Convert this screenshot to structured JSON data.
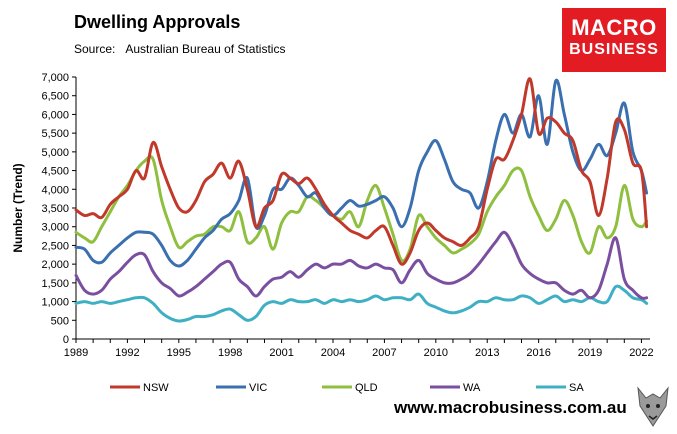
{
  "header": {
    "title": "Dwelling Approvals",
    "source_label": "Source:",
    "source_value": "Australian Bureau of Statistics"
  },
  "logo": {
    "line1": "MACRO",
    "line2": "BUSINESS",
    "color": "#e31c23"
  },
  "footer": {
    "website": "www.macrobusiness.com.au"
  },
  "chart_data": {
    "type": "line",
    "title": "Dwelling Approvals",
    "ylabel": "Number (Trend)",
    "xlabel": "",
    "xlim": [
      1989,
      2022.5
    ],
    "ylim": [
      0,
      7000
    ],
    "x_ticks": [
      "1989",
      "1992",
      "1995",
      "1998",
      "2001",
      "2004",
      "2007",
      "2010",
      "2013",
      "2016",
      "2019",
      "2022"
    ],
    "y_ticks": [
      "0",
      "500",
      "1,000",
      "1,500",
      "2,000",
      "2,500",
      "3,000",
      "3,500",
      "4,000",
      "4,500",
      "5,000",
      "5,500",
      "6,000",
      "6,500",
      "7,000"
    ],
    "grid": false,
    "legend_position": "bottom",
    "series": [
      {
        "name": "NSW",
        "color": "#c0392b",
        "x": [
          1989,
          1989.5,
          1990,
          1990.5,
          1991,
          1991.5,
          1992,
          1992.5,
          1993,
          1993.5,
          1994,
          1994.5,
          1995,
          1995.5,
          1996,
          1996.5,
          1997,
          1997.5,
          1998,
          1998.5,
          1999,
          1999.5,
          2000,
          2000.5,
          2001,
          2001.5,
          2002,
          2002.5,
          2003,
          2003.5,
          2004,
          2004.5,
          2005,
          2005.5,
          2006,
          2006.5,
          2007,
          2007.5,
          2008,
          2008.5,
          2009,
          2009.5,
          2010,
          2010.5,
          2011,
          2011.5,
          2012,
          2012.5,
          2013,
          2013.5,
          2014,
          2014.5,
          2015,
          2015.5,
          2016,
          2016.5,
          2017,
          2017.5,
          2018,
          2018.5,
          2019,
          2019.5,
          2020,
          2020.5,
          2021,
          2021.5,
          2022,
          2022.3
        ],
        "y": [
          3450,
          3300,
          3350,
          3250,
          3600,
          3800,
          4000,
          4500,
          4300,
          5250,
          4600,
          4000,
          3500,
          3400,
          3700,
          4200,
          4400,
          4700,
          4300,
          4750,
          4000,
          3000,
          3500,
          3700,
          4400,
          4300,
          4150,
          4300,
          4000,
          3600,
          3300,
          3100,
          2900,
          2800,
          2700,
          2900,
          3000,
          2500,
          2000,
          2300,
          2900,
          3100,
          2900,
          2700,
          2600,
          2500,
          2700,
          3000,
          4000,
          4800,
          4800,
          5300,
          6000,
          6950,
          5500,
          5900,
          5800,
          5500,
          5300,
          4500,
          4200,
          3300,
          4300,
          5800,
          5600,
          4700,
          4500,
          3000
        ]
      },
      {
        "name": "VIC",
        "color": "#3a6fb0",
        "x": [
          1989,
          1989.5,
          1990,
          1990.5,
          1991,
          1991.5,
          1992,
          1992.5,
          1993,
          1993.5,
          1994,
          1994.5,
          1995,
          1995.5,
          1996,
          1996.5,
          1997,
          1997.5,
          1998,
          1998.5,
          1999,
          1999.5,
          2000,
          2000.5,
          2001,
          2001.5,
          2002,
          2002.5,
          2003,
          2003.5,
          2004,
          2004.5,
          2005,
          2005.5,
          2006,
          2006.5,
          2007,
          2007.5,
          2008,
          2008.5,
          2009,
          2009.5,
          2010,
          2010.5,
          2011,
          2011.5,
          2012,
          2012.5,
          2013,
          2013.5,
          2014,
          2014.5,
          2015,
          2015.5,
          2016,
          2016.5,
          2017,
          2017.5,
          2018,
          2018.5,
          2019,
          2019.5,
          2020,
          2020.5,
          2021,
          2021.5,
          2022,
          2022.3
        ],
        "y": [
          2450,
          2400,
          2100,
          2050,
          2300,
          2500,
          2700,
          2850,
          2850,
          2800,
          2500,
          2100,
          1950,
          2100,
          2400,
          2700,
          2900,
          3200,
          3350,
          3700,
          4300,
          3000,
          3300,
          4000,
          4000,
          4300,
          4100,
          3800,
          3900,
          3500,
          3300,
          3500,
          3700,
          3550,
          3600,
          3700,
          3800,
          3500,
          3000,
          3500,
          4500,
          5000,
          5300,
          4800,
          4200,
          4000,
          3900,
          3500,
          4200,
          5300,
          6000,
          5500,
          6000,
          5400,
          6500,
          5200,
          6900,
          6000,
          5000,
          4500,
          4800,
          5200,
          4900,
          5500,
          6300,
          5000,
          4500,
          3900
        ]
      },
      {
        "name": "QLD",
        "color": "#8fbf3f",
        "x": [
          1989,
          1989.5,
          1990,
          1990.5,
          1991,
          1991.5,
          1992,
          1992.5,
          1993,
          1993.5,
          1994,
          1994.5,
          1995,
          1995.5,
          1996,
          1996.5,
          1997,
          1997.5,
          1998,
          1998.5,
          1999,
          1999.5,
          2000,
          2000.5,
          2001,
          2001.5,
          2002,
          2002.5,
          2003,
          2003.5,
          2004,
          2004.5,
          2005,
          2005.5,
          2006,
          2006.5,
          2007,
          2007.5,
          2008,
          2008.5,
          2009,
          2009.5,
          2010,
          2010.5,
          2011,
          2011.5,
          2012,
          2012.5,
          2013,
          2013.5,
          2014,
          2014.5,
          2015,
          2015.5,
          2016,
          2016.5,
          2017,
          2017.5,
          2018,
          2018.5,
          2019,
          2019.5,
          2020,
          2020.5,
          2021,
          2021.5,
          2022,
          2022.3
        ],
        "y": [
          2850,
          2700,
          2600,
          3000,
          3400,
          3800,
          4100,
          4500,
          4750,
          4800,
          3700,
          3000,
          2450,
          2600,
          2750,
          2800,
          3000,
          3000,
          2900,
          3400,
          2600,
          2700,
          3000,
          2400,
          3100,
          3400,
          3400,
          3800,
          3700,
          3500,
          3300,
          3200,
          3400,
          3000,
          3700,
          4100,
          3500,
          2800,
          2100,
          2400,
          3300,
          3000,
          2700,
          2500,
          2300,
          2400,
          2550,
          2800,
          3400,
          3800,
          4100,
          4500,
          4500,
          3800,
          3300,
          2900,
          3200,
          3700,
          3300,
          2600,
          2300,
          3000,
          2700,
          3000,
          4100,
          3200,
          3000,
          3150
        ]
      },
      {
        "name": "WA",
        "color": "#7a4fa0",
        "x": [
          1989,
          1989.5,
          1990,
          1990.5,
          1991,
          1991.5,
          1992,
          1992.5,
          1993,
          1993.5,
          1994,
          1994.5,
          1995,
          1995.5,
          1996,
          1996.5,
          1997,
          1997.5,
          1998,
          1998.5,
          1999,
          1999.5,
          2000,
          2000.5,
          2001,
          2001.5,
          2002,
          2002.5,
          2003,
          2003.5,
          2004,
          2004.5,
          2005,
          2005.5,
          2006,
          2006.5,
          2007,
          2007.5,
          2008,
          2008.5,
          2009,
          2009.5,
          2010,
          2010.5,
          2011,
          2011.5,
          2012,
          2012.5,
          2013,
          2013.5,
          2014,
          2014.5,
          2015,
          2015.5,
          2016,
          2016.5,
          2017,
          2017.5,
          2018,
          2018.5,
          2019,
          2019.5,
          2020,
          2020.5,
          2021,
          2021.5,
          2022,
          2022.3
        ],
        "y": [
          1700,
          1300,
          1200,
          1300,
          1600,
          1800,
          2050,
          2250,
          2250,
          1800,
          1500,
          1350,
          1150,
          1250,
          1400,
          1600,
          1800,
          2000,
          2050,
          1600,
          1400,
          1150,
          1400,
          1600,
          1650,
          1800,
          1650,
          1850,
          2000,
          1900,
          2000,
          2000,
          2100,
          1950,
          1900,
          2000,
          1900,
          1850,
          1500,
          1850,
          2100,
          1750,
          1600,
          1500,
          1500,
          1600,
          1750,
          2000,
          2300,
          2600,
          2850,
          2500,
          2000,
          1750,
          1600,
          1500,
          1500,
          1300,
          1200,
          1300,
          1100,
          1300,
          2000,
          2700,
          1600,
          1300,
          1100,
          1100
        ]
      },
      {
        "name": "SA",
        "color": "#3fb0c4",
        "x": [
          1989,
          1989.5,
          1990,
          1990.5,
          1991,
          1991.5,
          1992,
          1992.5,
          1993,
          1993.5,
          1994,
          1994.5,
          1995,
          1995.5,
          1996,
          1996.5,
          1997,
          1997.5,
          1998,
          1998.5,
          1999,
          1999.5,
          2000,
          2000.5,
          2001,
          2001.5,
          2002,
          2002.5,
          2003,
          2003.5,
          2004,
          2004.5,
          2005,
          2005.5,
          2006,
          2006.5,
          2007,
          2007.5,
          2008,
          2008.5,
          2009,
          2009.5,
          2010,
          2010.5,
          2011,
          2011.5,
          2012,
          2012.5,
          2013,
          2013.5,
          2014,
          2014.5,
          2015,
          2015.5,
          2016,
          2016.5,
          2017,
          2017.5,
          2018,
          2018.5,
          2019,
          2019.5,
          2020,
          2020.5,
          2021,
          2021.5,
          2022,
          2022.3
        ],
        "y": [
          950,
          1000,
          950,
          1000,
          950,
          1000,
          1050,
          1100,
          1100,
          950,
          700,
          550,
          480,
          520,
          600,
          600,
          650,
          750,
          800,
          650,
          500,
          600,
          900,
          1000,
          950,
          1050,
          1000,
          1000,
          1050,
          950,
          1050,
          1000,
          1050,
          1000,
          1050,
          1150,
          1050,
          1100,
          1100,
          1050,
          1200,
          950,
          850,
          750,
          700,
          750,
          850,
          1000,
          1000,
          1100,
          1050,
          1050,
          1150,
          1100,
          950,
          1050,
          1150,
          1000,
          1050,
          1000,
          1100,
          1000,
          1000,
          1400,
          1300,
          1100,
          1050,
          950
        ]
      }
    ]
  }
}
